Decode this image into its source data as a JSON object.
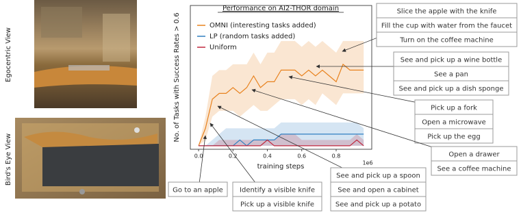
{
  "chart_data": {
    "type": "line",
    "title": "Performance on AI2-THOR domain",
    "xlabel": "training steps",
    "ylabel": "No. of Tasks with Success Rates > 0.6",
    "x_offset_label": "1e6",
    "x": [
      0,
      0.04,
      0.08,
      0.12,
      0.16,
      0.2,
      0.24,
      0.28,
      0.32,
      0.36,
      0.4,
      0.44,
      0.48,
      0.52,
      0.56,
      0.6,
      0.64,
      0.68,
      0.72,
      0.76,
      0.8,
      0.84,
      0.88,
      0.92,
      0.96
    ],
    "xlim": [
      -0.048,
      1.007
    ],
    "ylim": [
      -0.6,
      24.1
    ],
    "xticks": [
      {
        "value": 0,
        "label": "0.0"
      },
      {
        "value": 0.2,
        "label": "0.2"
      },
      {
        "value": 0.4,
        "label": "0.4"
      },
      {
        "value": 0.6,
        "label": "0.6"
      },
      {
        "value": 0.8,
        "label": "0.8"
      }
    ],
    "legend": "upper left",
    "series": [
      {
        "name": "OMNI (interesting tasks added)",
        "color": "#e8821e",
        "values": [
          0,
          3,
          8,
          9,
          9,
          10,
          9,
          10,
          12,
          10,
          11,
          11,
          13,
          13,
          13,
          12,
          13,
          12,
          13,
          12,
          11,
          14,
          13,
          13,
          13
        ],
        "lower": [
          0,
          1,
          5,
          6,
          6,
          6,
          5,
          6,
          7,
          6,
          6,
          7,
          8,
          8,
          8,
          7,
          8,
          7,
          9,
          8,
          7,
          9,
          9,
          9,
          9
        ],
        "upper": [
          0,
          5,
          12,
          13,
          13,
          14,
          14,
          14,
          16,
          14,
          16,
          16,
          18,
          18,
          18,
          17,
          18,
          17,
          18,
          17,
          16,
          18,
          18,
          18,
          18
        ]
      },
      {
        "name": "LP (random tasks added)",
        "color": "#2f7fc1",
        "values": [
          0,
          0,
          0,
          0,
          0,
          0,
          1,
          0,
          1,
          1,
          1,
          1,
          2,
          2,
          2,
          2,
          2,
          2,
          2,
          2,
          2,
          2,
          2,
          2,
          2
        ],
        "lower": [
          0,
          0,
          0,
          0,
          0,
          0,
          0,
          0,
          0,
          0,
          0,
          0,
          0,
          0,
          0,
          0,
          0,
          0,
          0,
          0,
          0,
          0,
          0,
          0,
          0
        ],
        "upper": [
          0,
          0,
          1,
          2,
          3,
          3,
          3,
          3,
          3,
          3,
          3,
          3,
          4,
          4,
          4,
          4,
          4,
          4,
          4,
          4,
          4,
          4,
          4,
          4,
          3
        ]
      },
      {
        "name": "Uniform",
        "color": "#c0273d",
        "values": [
          0,
          0,
          0,
          0,
          0,
          0,
          0,
          0,
          0,
          0,
          1,
          0,
          0,
          0,
          0,
          0,
          0,
          0,
          0,
          0,
          0,
          0,
          0,
          1,
          0
        ],
        "lower": [
          0,
          0,
          0,
          0,
          0,
          0,
          0,
          0,
          0,
          0,
          0,
          0,
          0,
          0,
          0,
          0,
          0,
          0,
          0,
          0,
          0,
          0,
          0,
          0,
          0
        ],
        "upper": [
          0,
          0,
          0,
          1,
          1,
          1,
          1,
          1,
          1,
          1,
          1,
          1,
          2,
          2,
          2,
          1,
          1,
          1,
          1,
          1,
          1,
          1,
          1,
          2,
          1
        ]
      }
    ]
  },
  "views": [
    "Egocentric View",
    "Bird's Eye View"
  ],
  "callouts": [
    [
      "Slice the apple with the knife",
      "Fill the cup with water from the faucet",
      "Turn on the coffee machine"
    ],
    [
      "See and pick up a wine bottle",
      "See a pan",
      "See and pick up a dish sponge"
    ],
    [
      "Pick up a fork",
      "Open a microwave",
      "Pick up the egg"
    ],
    [
      "Open a drawer",
      "See a coffee machine"
    ],
    [
      "See and pick up a spoon",
      "See and open a cabinet",
      "See and pick up a potato"
    ],
    [
      "Identify a visible knife",
      "Pick up a visible knife"
    ],
    [
      "Go to an apple"
    ]
  ]
}
